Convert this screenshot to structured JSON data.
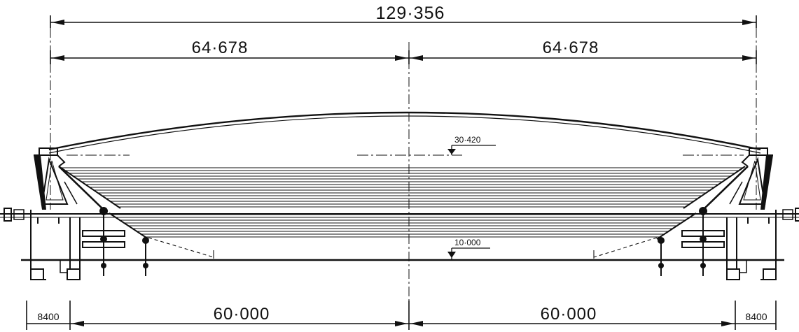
{
  "colors": {
    "ink": "#111111",
    "paper": "#ffffff"
  },
  "dimensions": {
    "overall_span": "129·356",
    "left_half_span": "64·678",
    "right_half_span": "64·678",
    "left_bay": "60·000",
    "right_bay": "60·000",
    "left_edge": "8400",
    "right_edge": "8400"
  },
  "levels": {
    "upper_level": "30·420",
    "lower_level": "10·000"
  }
}
